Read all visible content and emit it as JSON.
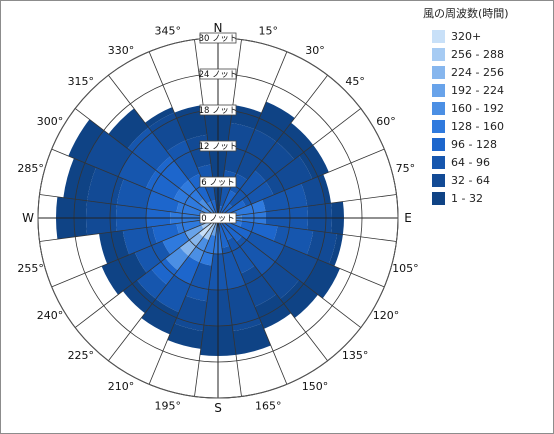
{
  "chart_data": {
    "type": "wind_rose",
    "legend_title": "風の周波数(時間)",
    "legend_position": "right",
    "bins": [
      {
        "label": "320+",
        "color": "#c8e0f8"
      },
      {
        "label": "256 - 288",
        "color": "#a6cbf3"
      },
      {
        "label": "224 - 256",
        "color": "#86b6ee"
      },
      {
        "label": "192 - 224",
        "color": "#68a3ea"
      },
      {
        "label": "160 - 192",
        "color": "#4b8fe4"
      },
      {
        "label": "128 - 160",
        "color": "#2f7ade"
      },
      {
        "label": "96 - 128",
        "color": "#1d66cc"
      },
      {
        "label": "64 - 96",
        "color": "#1656ae"
      },
      {
        "label": "32 - 64",
        "color": "#124a95"
      },
      {
        "label": "1 - 32",
        "color": "#0f4385"
      }
    ],
    "radial_axis": {
      "ticks": [
        {
          "value": 0,
          "label": "0 ノット"
        },
        {
          "value": 6,
          "label": "6 ノット"
        },
        {
          "value": 12,
          "label": "12 ノット"
        },
        {
          "value": 18,
          "label": "18 ノット"
        },
        {
          "value": 24,
          "label": "24 ノット"
        },
        {
          "value": 30,
          "label": "30 ノット"
        }
      ],
      "max": 30
    },
    "directions": [
      {
        "deg": 0,
        "label": "N"
      },
      {
        "deg": 15,
        "label": "15°"
      },
      {
        "deg": 30,
        "label": "30°"
      },
      {
        "deg": 45,
        "label": "45°"
      },
      {
        "deg": 60,
        "label": "60°"
      },
      {
        "deg": 75,
        "label": "75°"
      },
      {
        "deg": 90,
        "label": "E"
      },
      {
        "deg": 105,
        "label": "105°"
      },
      {
        "deg": 120,
        "label": "120°"
      },
      {
        "deg": 135,
        "label": "135°"
      },
      {
        "deg": 150,
        "label": "150°"
      },
      {
        "deg": 165,
        "label": "165°"
      },
      {
        "deg": 180,
        "label": "S"
      },
      {
        "deg": 195,
        "label": "195°"
      },
      {
        "deg": 210,
        "label": "210°"
      },
      {
        "deg": 225,
        "label": "225°"
      },
      {
        "deg": 240,
        "label": "240°"
      },
      {
        "deg": 255,
        "label": "255°"
      },
      {
        "deg": 270,
        "label": "W"
      },
      {
        "deg": 285,
        "label": "285°"
      },
      {
        "deg": 300,
        "label": "300°"
      },
      {
        "deg": 315,
        "label": "315°"
      },
      {
        "deg": 330,
        "label": "330°"
      },
      {
        "deg": 345,
        "label": "345°"
      }
    ],
    "sectors": [
      {
        "deg": 0,
        "segments": [
          {
            "to": 18,
            "bin": "1 - 32"
          }
        ]
      },
      {
        "deg": 15,
        "segments": [
          {
            "to": 2,
            "bin": "96 - 128"
          },
          {
            "to": 8,
            "bin": "64 - 96"
          },
          {
            "to": 16,
            "bin": "32 - 64"
          },
          {
            "to": 19,
            "bin": "1 - 32"
          }
        ]
      },
      {
        "deg": 30,
        "segments": [
          {
            "to": 5,
            "bin": "96 - 128"
          },
          {
            "to": 8,
            "bin": "64 - 96"
          },
          {
            "to": 16,
            "bin": "32 - 64"
          },
          {
            "to": 21,
            "bin": "1 - 32"
          }
        ]
      },
      {
        "deg": 45,
        "segments": [
          {
            "to": 3,
            "bin": "96 - 128"
          },
          {
            "to": 10,
            "bin": "64 - 96"
          },
          {
            "to": 16,
            "bin": "32 - 64"
          },
          {
            "to": 20,
            "bin": "1 - 32"
          }
        ]
      },
      {
        "deg": 60,
        "segments": [
          {
            "to": 5,
            "bin": "96 - 128"
          },
          {
            "to": 10,
            "bin": "64 - 96"
          },
          {
            "to": 17,
            "bin": "32 - 64"
          },
          {
            "to": 20,
            "bin": "1 - 32"
          }
        ]
      },
      {
        "deg": 75,
        "segments": [
          {
            "to": 8,
            "bin": "128 - 160"
          },
          {
            "to": 15,
            "bin": "64 - 96"
          },
          {
            "to": 18,
            "bin": "32 - 64"
          },
          {
            "to": 19,
            "bin": "1 - 32"
          }
        ]
      },
      {
        "deg": 90,
        "segments": [
          {
            "to": 4,
            "bin": "160 - 192"
          },
          {
            "to": 8,
            "bin": "128 - 160"
          },
          {
            "to": 15,
            "bin": "64 - 96"
          },
          {
            "to": 19,
            "bin": "32 - 64"
          },
          {
            "to": 21,
            "bin": "1 - 32"
          }
        ]
      },
      {
        "deg": 105,
        "segments": [
          {
            "to": 4,
            "bin": "128 - 160"
          },
          {
            "to": 10,
            "bin": "96 - 128"
          },
          {
            "to": 16,
            "bin": "64 - 96"
          },
          {
            "to": 20,
            "bin": "32 - 64"
          },
          {
            "to": 21,
            "bin": "1 - 32"
          }
        ]
      },
      {
        "deg": 120,
        "segments": [
          {
            "to": 6,
            "bin": "96 - 128"
          },
          {
            "to": 12,
            "bin": "64 - 96"
          },
          {
            "to": 18,
            "bin": "32 - 64"
          },
          {
            "to": 22,
            "bin": "1 - 32"
          }
        ]
      },
      {
        "deg": 135,
        "segments": [
          {
            "to": 5,
            "bin": "96 - 128"
          },
          {
            "to": 12,
            "bin": "64 - 96"
          },
          {
            "to": 17,
            "bin": "32 - 64"
          },
          {
            "to": 21,
            "bin": "1 - 32"
          }
        ]
      },
      {
        "deg": 150,
        "segments": [
          {
            "to": 4,
            "bin": "96 - 128"
          },
          {
            "to": 10,
            "bin": "64 - 96"
          },
          {
            "to": 16,
            "bin": "32 - 64"
          },
          {
            "to": 20,
            "bin": "1 - 32"
          }
        ]
      },
      {
        "deg": 165,
        "segments": [
          {
            "to": 5,
            "bin": "96 - 128"
          },
          {
            "to": 12,
            "bin": "64 - 96"
          },
          {
            "to": 19,
            "bin": "32 - 64"
          },
          {
            "to": 23,
            "bin": "1 - 32"
          }
        ]
      },
      {
        "deg": 180,
        "segments": [
          {
            "to": 6,
            "bin": "128 - 160"
          },
          {
            "to": 12,
            "bin": "64 - 96"
          },
          {
            "to": 18,
            "bin": "32 - 64"
          },
          {
            "to": 23,
            "bin": "1 - 32"
          }
        ]
      },
      {
        "deg": 195,
        "segments": [
          {
            "to": 3,
            "bin": "192 - 224"
          },
          {
            "to": 8,
            "bin": "128 - 160"
          },
          {
            "to": 14,
            "bin": "64 - 96"
          },
          {
            "to": 19,
            "bin": "32 - 64"
          },
          {
            "to": 22,
            "bin": "1 - 32"
          }
        ]
      },
      {
        "deg": 210,
        "segments": [
          {
            "to": 4,
            "bin": "256 - 288"
          },
          {
            "to": 8,
            "bin": "160 - 192"
          },
          {
            "to": 12,
            "bin": "96 - 128"
          },
          {
            "to": 17,
            "bin": "64 - 96"
          },
          {
            "to": 21,
            "bin": "1 - 32"
          }
        ]
      },
      {
        "deg": 225,
        "segments": [
          {
            "to": 4,
            "bin": "320+"
          },
          {
            "to": 8,
            "bin": "224 - 256"
          },
          {
            "to": 11,
            "bin": "160 - 192"
          },
          {
            "to": 14,
            "bin": "96 - 128"
          },
          {
            "to": 17,
            "bin": "64 - 96"
          },
          {
            "to": 20,
            "bin": "1 - 32"
          }
        ]
      },
      {
        "deg": 240,
        "segments": [
          {
            "to": 3,
            "bin": "256 - 288"
          },
          {
            "to": 6,
            "bin": "192 - 224"
          },
          {
            "to": 10,
            "bin": "128 - 160"
          },
          {
            "to": 15,
            "bin": "64 - 96"
          },
          {
            "to": 21,
            "bin": "1 - 32"
          }
        ]
      },
      {
        "deg": 255,
        "segments": [
          {
            "to": 3,
            "bin": "192 - 224"
          },
          {
            "to": 7,
            "bin": "128 - 160"
          },
          {
            "to": 11,
            "bin": "96 - 128"
          },
          {
            "to": 16,
            "bin": "64 - 96"
          },
          {
            "to": 20,
            "bin": "1 - 32"
          }
        ]
      },
      {
        "deg": 270,
        "segments": [
          {
            "to": 3,
            "bin": "160 - 192"
          },
          {
            "to": 8,
            "bin": "128 - 160"
          },
          {
            "to": 12,
            "bin": "96 - 128"
          },
          {
            "to": 17,
            "bin": "64 - 96"
          },
          {
            "to": 22,
            "bin": "32 - 64"
          },
          {
            "to": 27,
            "bin": "1 - 32"
          }
        ]
      },
      {
        "deg": 285,
        "segments": [
          {
            "to": 3,
            "bin": "192 - 224"
          },
          {
            "to": 7,
            "bin": "128 - 160"
          },
          {
            "to": 12,
            "bin": "96 - 128"
          },
          {
            "to": 17,
            "bin": "64 - 96"
          },
          {
            "to": 22,
            "bin": "32 - 64"
          },
          {
            "to": 26,
            "bin": "1 - 32"
          }
        ]
      },
      {
        "deg": 300,
        "segments": [
          {
            "to": 3,
            "bin": "160 - 192"
          },
          {
            "to": 8,
            "bin": "128 - 160"
          },
          {
            "to": 13,
            "bin": "96 - 128"
          },
          {
            "to": 18,
            "bin": "64 - 96"
          },
          {
            "to": 24,
            "bin": "32 - 64"
          },
          {
            "to": 27,
            "bin": "1 - 32"
          }
        ]
      },
      {
        "deg": 315,
        "segments": [
          {
            "to": 4,
            "bin": "160 - 192"
          },
          {
            "to": 8,
            "bin": "128 - 160"
          },
          {
            "to": 13,
            "bin": "96 - 128"
          },
          {
            "to": 19,
            "bin": "64 - 96"
          },
          {
            "to": 23,
            "bin": "1 - 32"
          }
        ]
      },
      {
        "deg": 330,
        "segments": [
          {
            "to": 3,
            "bin": "128 - 160"
          },
          {
            "to": 8,
            "bin": "96 - 128"
          },
          {
            "to": 14,
            "bin": "64 - 96"
          },
          {
            "to": 19,
            "bin": "32 - 64"
          },
          {
            "to": 20,
            "bin": "1 - 32"
          }
        ]
      },
      {
        "deg": 345,
        "segments": [
          {
            "to": 3,
            "bin": "96 - 128"
          },
          {
            "to": 9,
            "bin": "64 - 96"
          },
          {
            "to": 14,
            "bin": "32 - 64"
          },
          {
            "to": 19,
            "bin": "1 - 32"
          }
        ]
      }
    ],
    "grid": true
  }
}
